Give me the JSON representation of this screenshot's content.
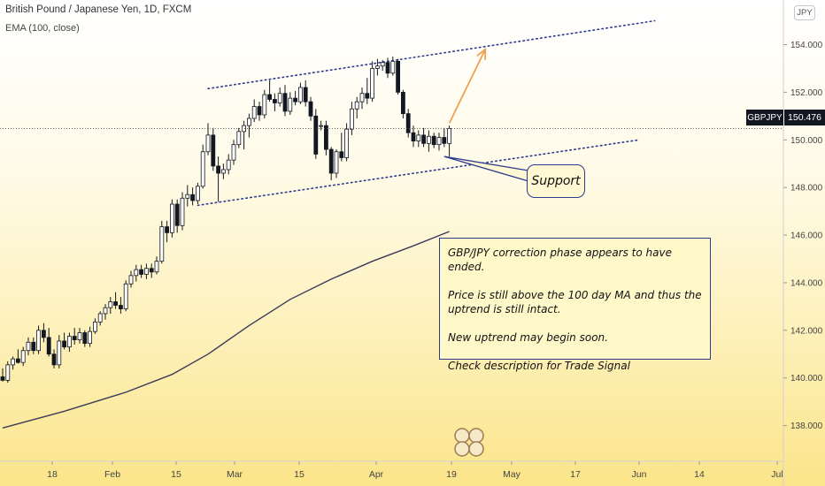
{
  "header": {
    "title": "British Pound / Japanese Yen, 1D, FXCM",
    "indicator": "EMA (100, close)"
  },
  "price_axis": {
    "unit_button": "JPY",
    "symbol": "GBPJPY",
    "last_price": "150.476"
  },
  "callout": {
    "label": "Support"
  },
  "note": {
    "lines": [
      "GBP/JPY correction phase appears to have ended.",
      "Price is still above the 100 day MA and thus the uptrend is still intact.",
      "New uptrend may begin soon.",
      "Check description for Trade Signal"
    ]
  },
  "colors": {
    "bull_candle": "#ffffff",
    "bear_candle": "#131722",
    "candle_border": "#131722",
    "ema_line": "#3b3a5a",
    "channel_line": "#2b3a8f",
    "projection_arrow": "#f0a050",
    "note_border": "#2b3a8f"
  },
  "chart_data": {
    "type": "candlestick",
    "title": "British Pound / Japanese Yen, 1D, FXCM",
    "indicator": "EMA (100, close)",
    "ylim": [
      136.5,
      155.8
    ],
    "y_ticks": [
      "138.000",
      "140.000",
      "142.000",
      "144.000",
      "146.000",
      "148.000",
      "150.000",
      "152.000",
      "154.000"
    ],
    "x_ticks": [
      "18",
      "Feb",
      "15",
      "Mar",
      "15",
      "Apr",
      "19",
      "May",
      "17",
      "Jun",
      "14",
      "Jul"
    ],
    "grid": false,
    "last_price": 150.476,
    "candles": [
      {
        "o": 140.05,
        "h": 140.4,
        "l": 139.85,
        "c": 139.9
      },
      {
        "o": 139.9,
        "h": 140.7,
        "l": 139.8,
        "c": 140.55
      },
      {
        "o": 140.55,
        "h": 140.9,
        "l": 140.35,
        "c": 140.8
      },
      {
        "o": 140.8,
        "h": 141.2,
        "l": 140.6,
        "c": 140.65
      },
      {
        "o": 140.65,
        "h": 141.3,
        "l": 140.5,
        "c": 141.15
      },
      {
        "o": 141.15,
        "h": 141.7,
        "l": 140.95,
        "c": 141.5
      },
      {
        "o": 141.5,
        "h": 141.7,
        "l": 141.0,
        "c": 141.15
      },
      {
        "o": 141.15,
        "h": 142.2,
        "l": 141.0,
        "c": 142.0
      },
      {
        "o": 142.0,
        "h": 142.3,
        "l": 141.5,
        "c": 141.7
      },
      {
        "o": 141.7,
        "h": 142.1,
        "l": 140.9,
        "c": 141.0
      },
      {
        "o": 141.0,
        "h": 141.2,
        "l": 140.4,
        "c": 140.55
      },
      {
        "o": 140.55,
        "h": 141.8,
        "l": 140.4,
        "c": 141.55
      },
      {
        "o": 141.55,
        "h": 141.9,
        "l": 141.2,
        "c": 141.3
      },
      {
        "o": 141.3,
        "h": 141.9,
        "l": 141.1,
        "c": 141.75
      },
      {
        "o": 141.75,
        "h": 142.1,
        "l": 141.4,
        "c": 141.6
      },
      {
        "o": 141.6,
        "h": 142.1,
        "l": 141.45,
        "c": 141.9
      },
      {
        "o": 141.9,
        "h": 142.0,
        "l": 141.3,
        "c": 141.45
      },
      {
        "o": 141.45,
        "h": 142.15,
        "l": 141.3,
        "c": 141.95
      },
      {
        "o": 141.95,
        "h": 142.5,
        "l": 141.85,
        "c": 142.35
      },
      {
        "o": 142.35,
        "h": 142.8,
        "l": 142.2,
        "c": 142.7
      },
      {
        "o": 142.7,
        "h": 143.1,
        "l": 142.45,
        "c": 142.95
      },
      {
        "o": 142.95,
        "h": 143.4,
        "l": 142.7,
        "c": 143.2
      },
      {
        "o": 143.2,
        "h": 143.6,
        "l": 142.9,
        "c": 143.05
      },
      {
        "o": 143.05,
        "h": 143.4,
        "l": 142.7,
        "c": 142.9
      },
      {
        "o": 142.9,
        "h": 144.1,
        "l": 142.8,
        "c": 143.95
      },
      {
        "o": 143.95,
        "h": 144.5,
        "l": 143.8,
        "c": 144.3
      },
      {
        "o": 144.3,
        "h": 144.75,
        "l": 144.05,
        "c": 144.55
      },
      {
        "o": 144.55,
        "h": 144.75,
        "l": 144.2,
        "c": 144.35
      },
      {
        "o": 144.35,
        "h": 144.8,
        "l": 144.15,
        "c": 144.6
      },
      {
        "o": 144.6,
        "h": 144.8,
        "l": 144.2,
        "c": 144.45
      },
      {
        "o": 144.45,
        "h": 145.1,
        "l": 144.35,
        "c": 144.9
      },
      {
        "o": 144.9,
        "h": 146.6,
        "l": 144.8,
        "c": 146.35
      },
      {
        "o": 146.35,
        "h": 146.6,
        "l": 145.7,
        "c": 146.1
      },
      {
        "o": 146.1,
        "h": 147.5,
        "l": 145.9,
        "c": 147.3
      },
      {
        "o": 147.3,
        "h": 147.5,
        "l": 146.1,
        "c": 146.4
      },
      {
        "o": 146.4,
        "h": 147.8,
        "l": 146.2,
        "c": 147.55
      },
      {
        "o": 147.55,
        "h": 148.1,
        "l": 147.2,
        "c": 147.7
      },
      {
        "o": 147.7,
        "h": 148.0,
        "l": 147.25,
        "c": 147.45
      },
      {
        "o": 147.45,
        "h": 148.2,
        "l": 147.3,
        "c": 148.05
      },
      {
        "o": 148.05,
        "h": 149.8,
        "l": 147.95,
        "c": 149.5
      },
      {
        "o": 149.5,
        "h": 150.7,
        "l": 149.35,
        "c": 150.2
      },
      {
        "o": 150.2,
        "h": 150.5,
        "l": 148.7,
        "c": 148.9
      },
      {
        "o": 148.9,
        "h": 149.3,
        "l": 147.4,
        "c": 148.6
      },
      {
        "o": 148.6,
        "h": 149.0,
        "l": 148.35,
        "c": 148.75
      },
      {
        "o": 148.75,
        "h": 149.4,
        "l": 148.55,
        "c": 149.15
      },
      {
        "o": 149.15,
        "h": 150.0,
        "l": 148.95,
        "c": 149.8
      },
      {
        "o": 149.8,
        "h": 150.5,
        "l": 149.65,
        "c": 150.35
      },
      {
        "o": 150.35,
        "h": 150.8,
        "l": 149.6,
        "c": 150.6
      },
      {
        "o": 150.6,
        "h": 151.1,
        "l": 150.1,
        "c": 150.9
      },
      {
        "o": 150.9,
        "h": 151.7,
        "l": 150.75,
        "c": 151.4
      },
      {
        "o": 151.4,
        "h": 151.6,
        "l": 150.8,
        "c": 151.05
      },
      {
        "o": 151.05,
        "h": 152.1,
        "l": 150.9,
        "c": 151.9
      },
      {
        "o": 151.9,
        "h": 152.5,
        "l": 151.6,
        "c": 151.7
      },
      {
        "o": 151.7,
        "h": 151.95,
        "l": 151.2,
        "c": 151.55
      },
      {
        "o": 151.55,
        "h": 152.2,
        "l": 151.4,
        "c": 151.95
      },
      {
        "o": 151.95,
        "h": 152.3,
        "l": 151.0,
        "c": 151.2
      },
      {
        "o": 151.2,
        "h": 152.0,
        "l": 151.05,
        "c": 151.75
      },
      {
        "o": 151.75,
        "h": 152.05,
        "l": 151.45,
        "c": 151.6
      },
      {
        "o": 151.6,
        "h": 152.4,
        "l": 151.5,
        "c": 152.2
      },
      {
        "o": 152.2,
        "h": 152.5,
        "l": 151.4,
        "c": 151.6
      },
      {
        "o": 151.6,
        "h": 151.8,
        "l": 150.8,
        "c": 151.0
      },
      {
        "o": 151.0,
        "h": 151.3,
        "l": 149.2,
        "c": 149.4
      },
      {
        "o": 150.6,
        "h": 150.8,
        "l": 150.4,
        "c": 150.6
      },
      {
        "o": 150.6,
        "h": 150.8,
        "l": 149.35,
        "c": 149.6
      },
      {
        "o": 149.6,
        "h": 149.7,
        "l": 148.3,
        "c": 148.6
      },
      {
        "o": 148.6,
        "h": 149.6,
        "l": 148.4,
        "c": 149.5
      },
      {
        "o": 149.5,
        "h": 150.3,
        "l": 149.1,
        "c": 149.25
      },
      {
        "o": 149.25,
        "h": 150.7,
        "l": 149.1,
        "c": 150.45
      },
      {
        "o": 150.45,
        "h": 151.6,
        "l": 150.2,
        "c": 151.3
      },
      {
        "o": 151.3,
        "h": 151.8,
        "l": 150.9,
        "c": 151.6
      },
      {
        "o": 151.6,
        "h": 152.2,
        "l": 151.3,
        "c": 151.95
      },
      {
        "o": 151.95,
        "h": 152.6,
        "l": 151.5,
        "c": 151.75
      },
      {
        "o": 151.75,
        "h": 153.3,
        "l": 151.6,
        "c": 153.0
      },
      {
        "o": 153.0,
        "h": 153.4,
        "l": 152.7,
        "c": 153.1
      },
      {
        "o": 153.1,
        "h": 153.35,
        "l": 152.9,
        "c": 153.25
      },
      {
        "o": 153.25,
        "h": 153.45,
        "l": 152.6,
        "c": 152.8
      },
      {
        "o": 152.8,
        "h": 153.5,
        "l": 152.7,
        "c": 153.3
      },
      {
        "o": 153.3,
        "h": 153.4,
        "l": 151.9,
        "c": 152.0
      },
      {
        "o": 152.0,
        "h": 152.1,
        "l": 150.9,
        "c": 151.1
      },
      {
        "o": 151.1,
        "h": 151.3,
        "l": 150.1,
        "c": 150.3
      },
      {
        "o": 150.3,
        "h": 150.6,
        "l": 149.7,
        "c": 149.95
      },
      {
        "o": 149.95,
        "h": 150.4,
        "l": 149.7,
        "c": 150.2
      },
      {
        "o": 150.2,
        "h": 150.5,
        "l": 149.7,
        "c": 149.85
      },
      {
        "o": 149.85,
        "h": 150.4,
        "l": 149.5,
        "c": 150.15
      },
      {
        "o": 150.15,
        "h": 150.3,
        "l": 149.65,
        "c": 149.8
      },
      {
        "o": 149.8,
        "h": 150.3,
        "l": 149.55,
        "c": 150.1
      },
      {
        "o": 150.1,
        "h": 150.5,
        "l": 149.7,
        "c": 149.85
      },
      {
        "o": 149.85,
        "h": 150.6,
        "l": 149.3,
        "c": 150.476
      }
    ],
    "ema_100": [
      {
        "i": 0,
        "v": 137.9
      },
      {
        "i": 12,
        "v": 138.6
      },
      {
        "i": 24,
        "v": 139.4
      },
      {
        "i": 33,
        "v": 140.15
      },
      {
        "i": 40,
        "v": 141.0
      },
      {
        "i": 48,
        "v": 142.2
      },
      {
        "i": 56,
        "v": 143.3
      },
      {
        "i": 64,
        "v": 144.15
      },
      {
        "i": 72,
        "v": 144.9
      },
      {
        "i": 80,
        "v": 145.55
      },
      {
        "i": 87,
        "v": 146.15
      }
    ],
    "channel_upper": [
      {
        "i": 40,
        "v": 152.15
      },
      {
        "i": 127,
        "v": 155.0
      }
    ],
    "channel_lower": [
      {
        "i": 38,
        "v": 147.25
      },
      {
        "i": 124,
        "v": 150.0
      }
    ],
    "projection_arrow": [
      {
        "i": 87,
        "v": 150.7
      },
      {
        "i": 94,
        "v": 153.8
      }
    ],
    "support_pointer_target": {
      "i": 86,
      "v": 149.3
    }
  }
}
